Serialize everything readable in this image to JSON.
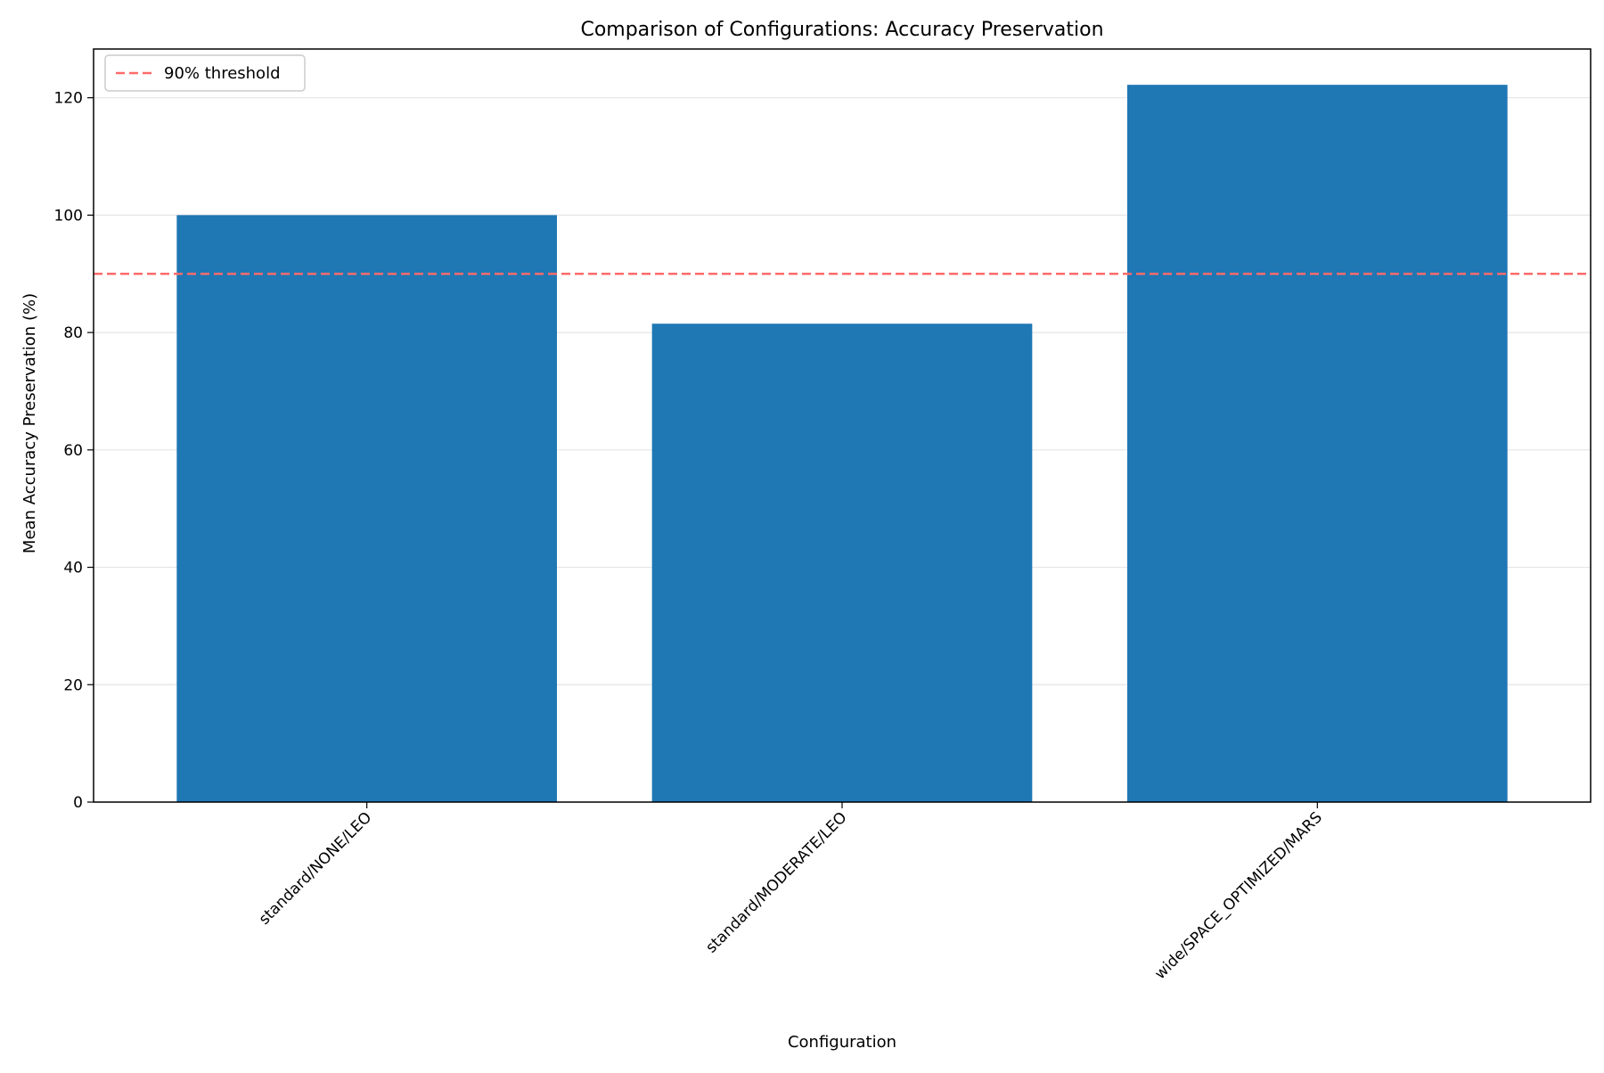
{
  "chart_data": {
    "type": "bar",
    "title": "Comparison of Configurations: Accuracy Preservation",
    "xlabel": "Configuration",
    "ylabel": "Mean Accuracy Preservation (%)",
    "categories": [
      "standard/NONE/LEO",
      "standard/MODERATE/LEO",
      "wide/SPACE_OPTIMIZED/MARS"
    ],
    "values": [
      100,
      81.5,
      122.2
    ],
    "ylim": [
      0,
      128.3
    ],
    "yticks": [
      0,
      20,
      40,
      60,
      80,
      100,
      120
    ],
    "grid": "y-axis horizontal lines",
    "legend_position": "top-left",
    "threshold": {
      "value": 90,
      "label": "90% threshold"
    },
    "colors": {
      "bar": "#1f77b4",
      "threshold": "#ff6b6b",
      "grid": "#e5e5e5",
      "axis": "#000000"
    }
  }
}
